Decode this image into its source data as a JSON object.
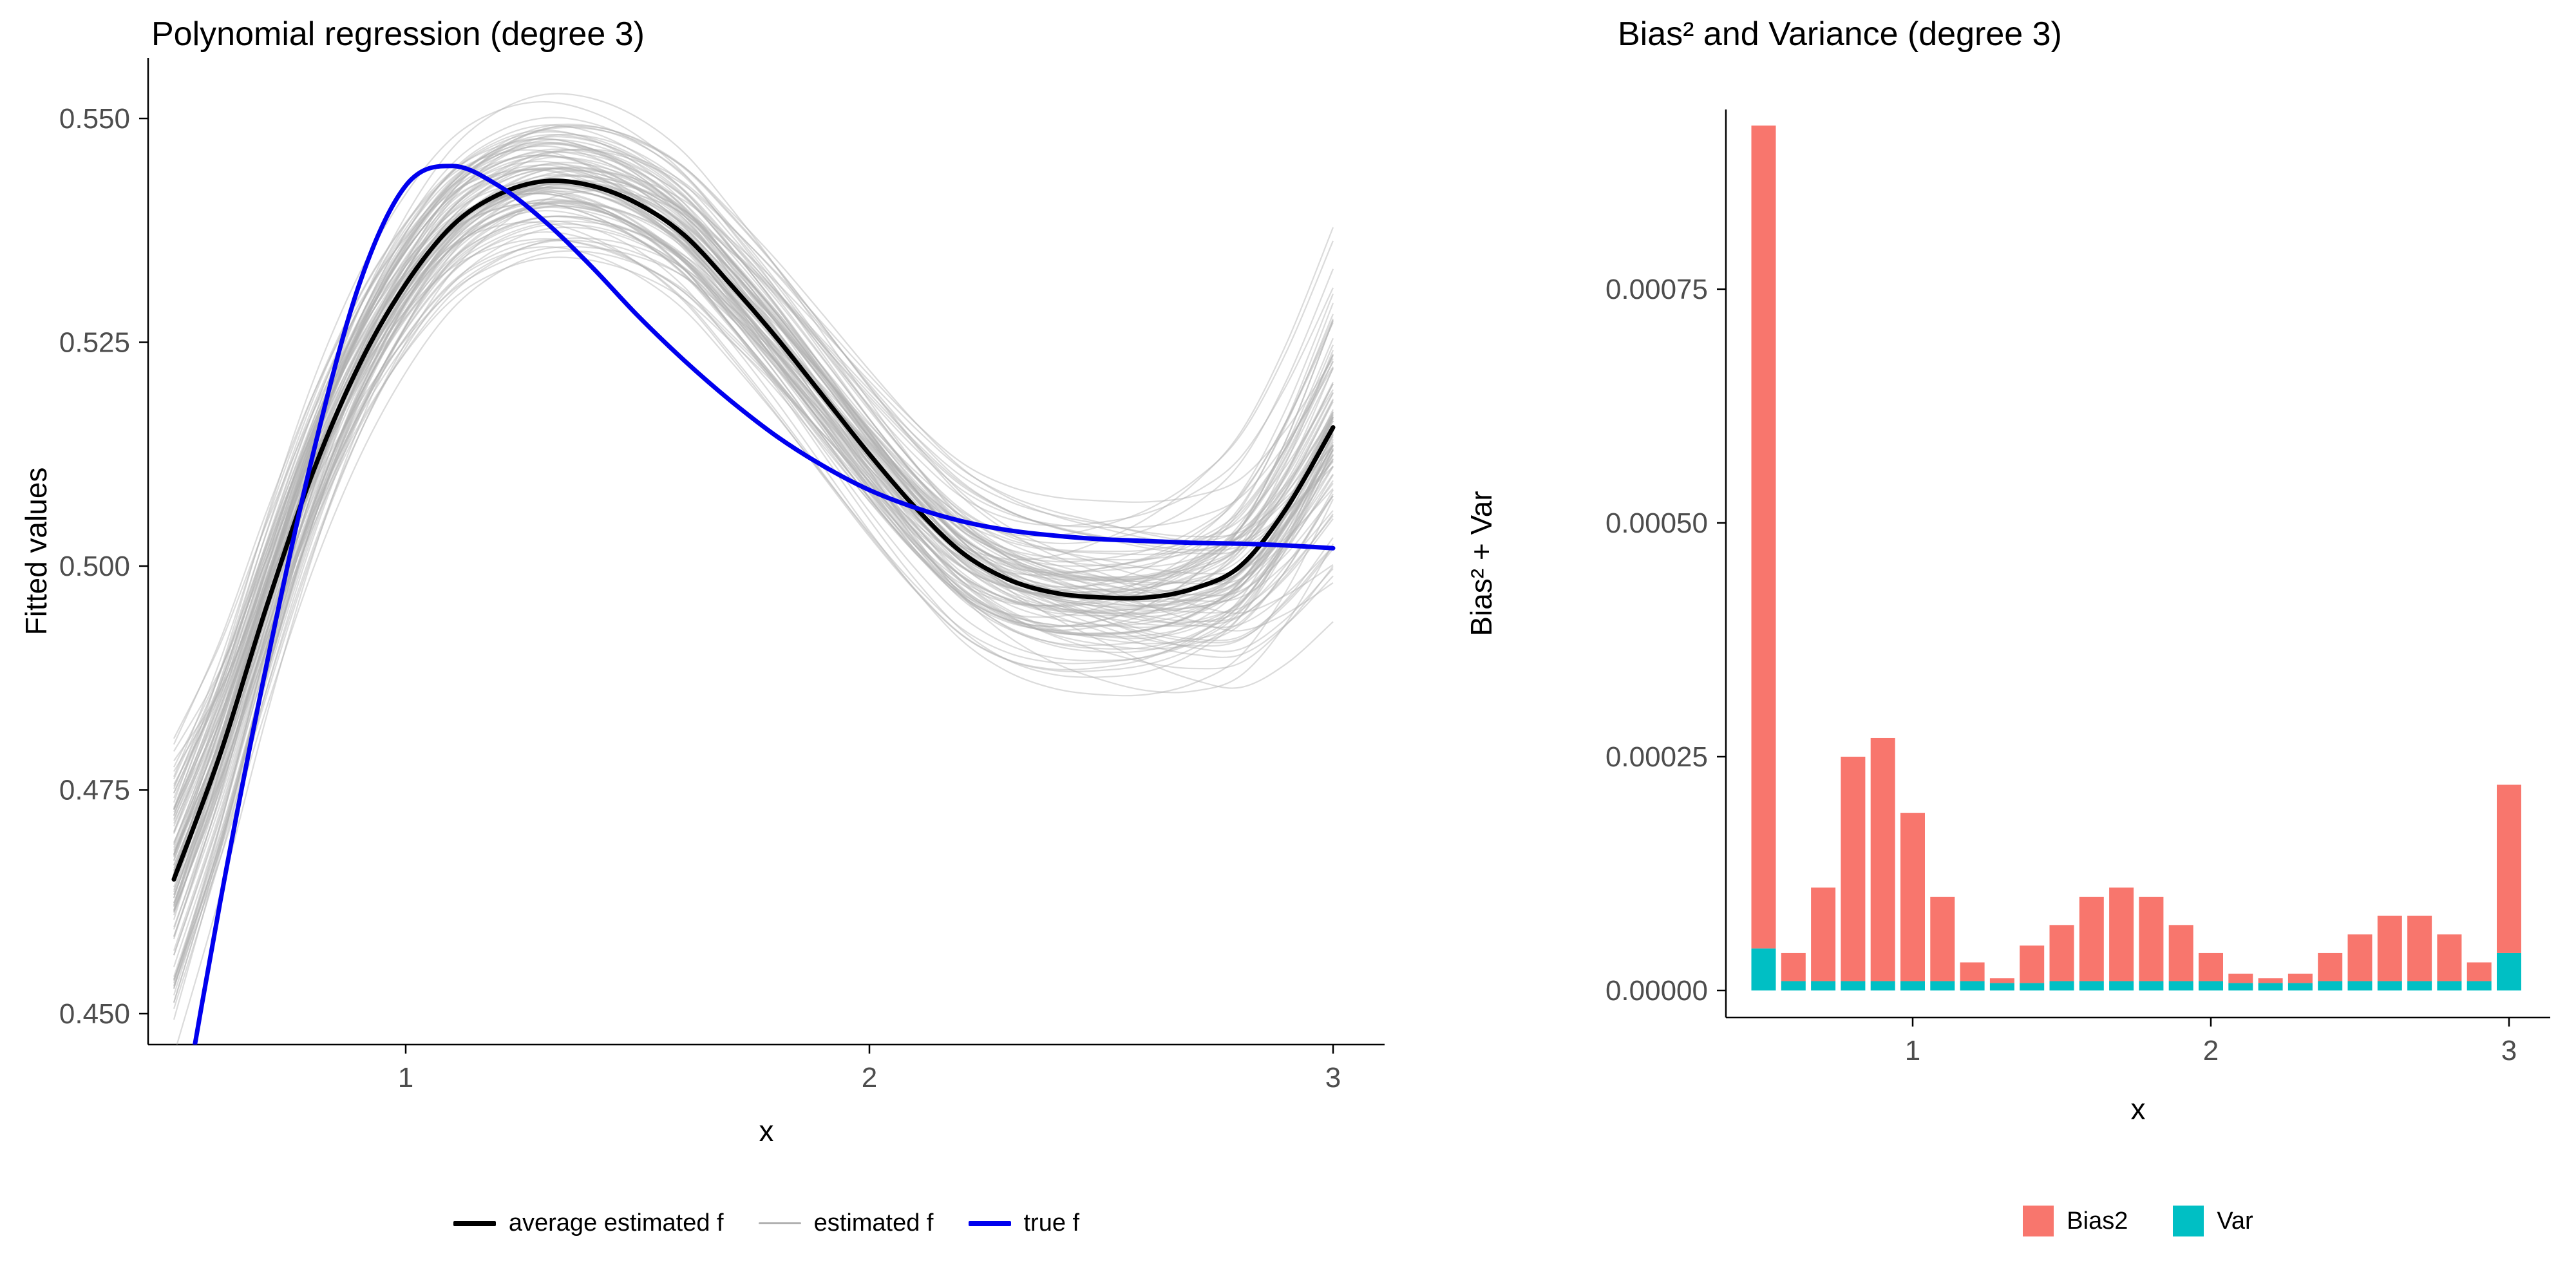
{
  "page": {
    "background": "#ffffff"
  },
  "chart_data": [
    {
      "type": "line",
      "title": "Polynomial regression (degree 3)",
      "xlabel": "x",
      "ylabel": "Fitted values",
      "x_tick_labels": [
        "1",
        "2",
        "3"
      ],
      "x_tick_values": [
        1,
        2,
        3
      ],
      "y_tick_labels": [
        "0.450",
        "0.475",
        "0.500",
        "0.525",
        "0.550"
      ],
      "y_tick_values": [
        0.45,
        0.475,
        0.5,
        0.525,
        0.55
      ],
      "xlim": [
        0.44,
        3.11
      ],
      "ylim": [
        0.4465,
        0.5565
      ],
      "grid": false,
      "legend_position": "bottom",
      "x": [
        0.5,
        0.6,
        0.7,
        0.8,
        0.9,
        1.0,
        1.1,
        1.2,
        1.3,
        1.4,
        1.5,
        1.6,
        1.7,
        1.8,
        1.9,
        2.0,
        2.1,
        2.2,
        2.3,
        2.4,
        2.5,
        2.6,
        2.7,
        2.8,
        2.9,
        3.0
      ],
      "series": [
        {
          "name": "average estimated f",
          "color": "#000000",
          "linewidth": 7,
          "values": [
            0.465,
            0.479,
            0.4955,
            0.5105,
            0.5225,
            0.5315,
            0.538,
            0.5415,
            0.543,
            0.5425,
            0.5405,
            0.537,
            0.5315,
            0.5255,
            0.519,
            0.5125,
            0.5065,
            0.5015,
            0.4985,
            0.497,
            0.4965,
            0.4965,
            0.4975,
            0.5,
            0.5065,
            0.5155
          ]
        },
        {
          "name": "true f",
          "color": "#0000EE",
          "linewidth": 7,
          "values": [
            0.433,
            0.4625,
            0.489,
            0.5125,
            0.5315,
            0.5425,
            0.5447,
            0.5425,
            0.5385,
            0.5335,
            0.528,
            0.523,
            0.5185,
            0.5145,
            0.5112,
            0.5085,
            0.5065,
            0.505,
            0.504,
            0.5034,
            0.503,
            0.5028,
            0.5026,
            0.5025,
            0.5023,
            0.502
          ]
        }
      ],
      "simulated_curves": {
        "name": "estimated f",
        "count": 100,
        "seed": 20,
        "basis_scales": [
          0.0032,
          0.0042,
          0.0045,
          0.0042
        ],
        "color": "#b0b0b0",
        "opacity": 0.45,
        "linewidth": 2.2
      },
      "legend": [
        {
          "label": "average estimated f",
          "color": "#000000",
          "line_thickness": "thick"
        },
        {
          "label": "estimated f",
          "color": "#b0b0b0",
          "line_thickness": "thin"
        },
        {
          "label": "true f",
          "color": "#0000EE",
          "line_thickness": "thick"
        }
      ]
    },
    {
      "type": "bar",
      "stacked": true,
      "title": "Bias² and Variance (degree 3)",
      "xlabel": "x",
      "ylabel": "Bias² + Var",
      "x_tick_labels": [
        "1",
        "2",
        "3"
      ],
      "x_tick_values": [
        1,
        2,
        3
      ],
      "y_tick_labels": [
        "0.00000",
        "0.00025",
        "0.00050",
        "0.00075"
      ],
      "y_tick_values": [
        0.0,
        0.00025,
        0.0005,
        0.00075
      ],
      "ylim": [
        -3e-05,
        0.00097
      ],
      "grid": false,
      "legend_position": "bottom",
      "x": [
        0.5,
        0.6,
        0.7,
        0.8,
        0.9,
        1.0,
        1.1,
        1.2,
        1.3,
        1.4,
        1.5,
        1.6,
        1.7,
        1.8,
        1.9,
        2.0,
        2.1,
        2.2,
        2.3,
        2.4,
        2.5,
        2.6,
        2.7,
        2.8,
        2.9,
        3.0
      ],
      "series": [
        {
          "name": "Var",
          "color": "#00BFC4",
          "values": [
            4.5e-05,
            1e-05,
            1e-05,
            1e-05,
            1e-05,
            1e-05,
            1e-05,
            1e-05,
            8e-06,
            8e-06,
            1e-05,
            1e-05,
            1e-05,
            1e-05,
            1e-05,
            1e-05,
            8e-06,
            8e-06,
            8e-06,
            1e-05,
            1e-05,
            1e-05,
            1e-05,
            1e-05,
            1e-05,
            4e-05
          ]
        },
        {
          "name": "Bias2",
          "color": "#F8766D",
          "values": [
            0.00088,
            3e-05,
            0.0001,
            0.00024,
            0.00026,
            0.00018,
            9e-05,
            2e-05,
            5e-06,
            4e-05,
            6e-05,
            9e-05,
            0.0001,
            9e-05,
            6e-05,
            3e-05,
            1e-05,
            5e-06,
            1e-05,
            3e-05,
            5e-05,
            7e-05,
            7e-05,
            5e-05,
            2e-05,
            0.00018
          ]
        }
      ],
      "legend": [
        {
          "label": "Bias2",
          "color": "#F8766D"
        },
        {
          "label": "Var",
          "color": "#00BFC4"
        }
      ]
    }
  ]
}
